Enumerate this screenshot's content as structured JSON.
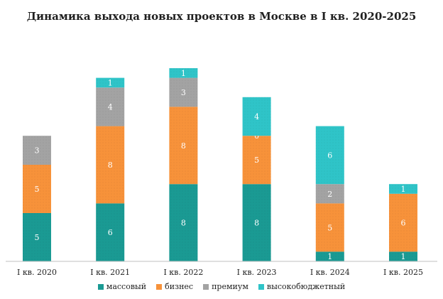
{
  "chart_data": {
    "type": "bar",
    "stacked": true,
    "title": "Динамика  выхода новых проектов  в Москве в I кв. 2020-2025",
    "categories": [
      "I кв. 2020",
      "I кв. 2021",
      "I кв. 2022",
      "I кв. 2023",
      "I кв. 2024",
      "I кв. 2025"
    ],
    "series": [
      {
        "name": "массовый",
        "color": "#1a9a93",
        "values": [
          5,
          6,
          8,
          8,
          1,
          1
        ]
      },
      {
        "name": "бизнес",
        "color": "#f7923a",
        "values": [
          5,
          8,
          8,
          5,
          5,
          6
        ]
      },
      {
        "name": "премиум",
        "color": "#a3a3a3",
        "values": [
          3,
          4,
          3,
          0,
          2,
          0
        ]
      },
      {
        "name": "высокобюджетный",
        "color": "#2fc4c8",
        "values": [
          0,
          1,
          1,
          4,
          6,
          1
        ]
      }
    ],
    "ylim": [
      0,
      20
    ],
    "grid": false,
    "legend_position": "bottom"
  }
}
